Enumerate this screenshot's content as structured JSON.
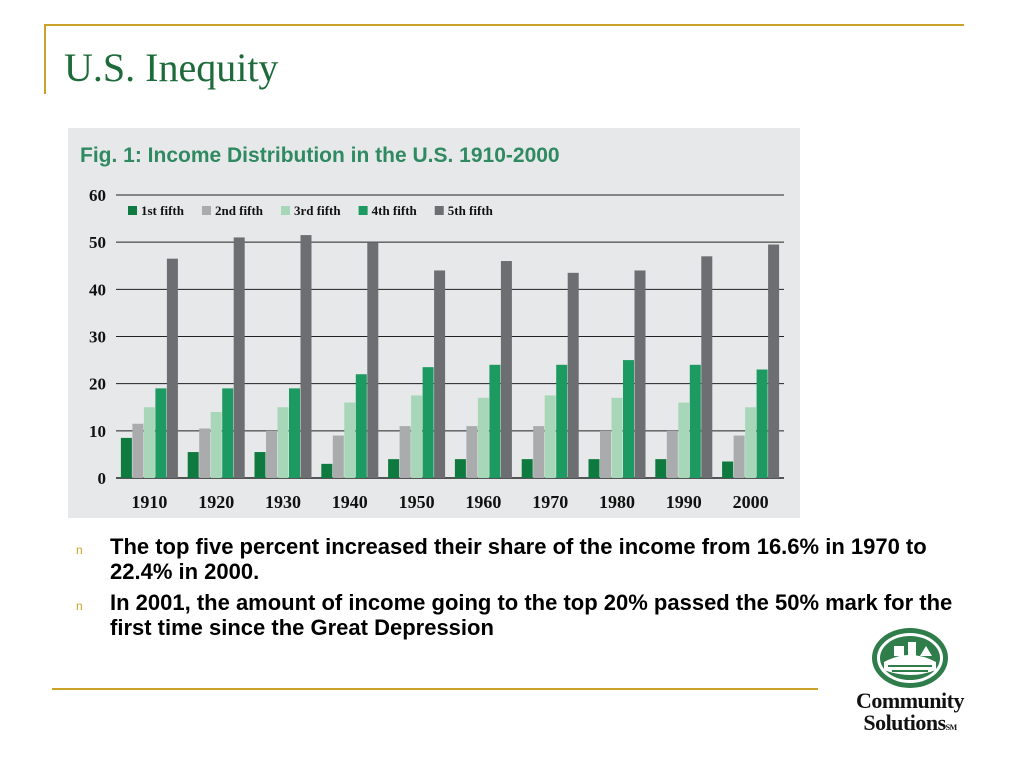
{
  "slide": {
    "title": "U.S. Inequity",
    "bullet_marker": "n",
    "bullets": [
      "The top five percent increased their share of the income from 16.6% in 1970 to 22.4% in 2000.",
      "In 2001, the amount of income going to the top 20% passed the 50% mark for the first time since the Great Depression"
    ],
    "logo": {
      "line1": "Community",
      "line2": "Solutions",
      "mark": "SM"
    }
  },
  "colors": {
    "accent_rule": "#c9a227",
    "title": "#1d6b3a",
    "figure_title": "#2f8a61",
    "logo_green": "#2e7d4a"
  },
  "chart_data": {
    "type": "bar",
    "title": "Fig. 1: Income Distribution in the U.S. 1910-2000",
    "xlabel": "",
    "ylabel": "",
    "categories": [
      "1910",
      "1920",
      "1930",
      "1940",
      "1950",
      "1960",
      "1970",
      "1980",
      "1990",
      "2000"
    ],
    "yticks": [
      "0",
      "10",
      "20",
      "30",
      "40",
      "50",
      "60"
    ],
    "ylim": [
      0,
      60
    ],
    "grid": true,
    "legend_position": "top-left",
    "series": [
      {
        "name": "1st fifth",
        "color": "#0f7a40",
        "values": [
          8.5,
          5.5,
          5.5,
          3,
          4,
          4,
          4,
          4,
          4,
          3.5
        ]
      },
      {
        "name": "2nd fifth",
        "color": "#a9abad",
        "values": [
          11.5,
          10.5,
          10,
          9,
          11,
          11,
          11,
          10,
          10,
          9
        ]
      },
      {
        "name": "3rd fifth",
        "color": "#a7d7b8",
        "values": [
          15,
          14,
          15,
          16,
          17.5,
          17,
          17.5,
          17,
          16,
          15
        ]
      },
      {
        "name": "4th fifth",
        "color": "#1d9a62",
        "values": [
          19,
          19,
          19,
          22,
          23.5,
          24,
          24,
          25,
          24,
          23
        ]
      },
      {
        "name": "5th fifth",
        "color": "#6d6e71",
        "values": [
          46.5,
          51,
          51.5,
          50,
          44,
          46,
          43.5,
          44,
          47,
          49.5
        ]
      }
    ]
  }
}
